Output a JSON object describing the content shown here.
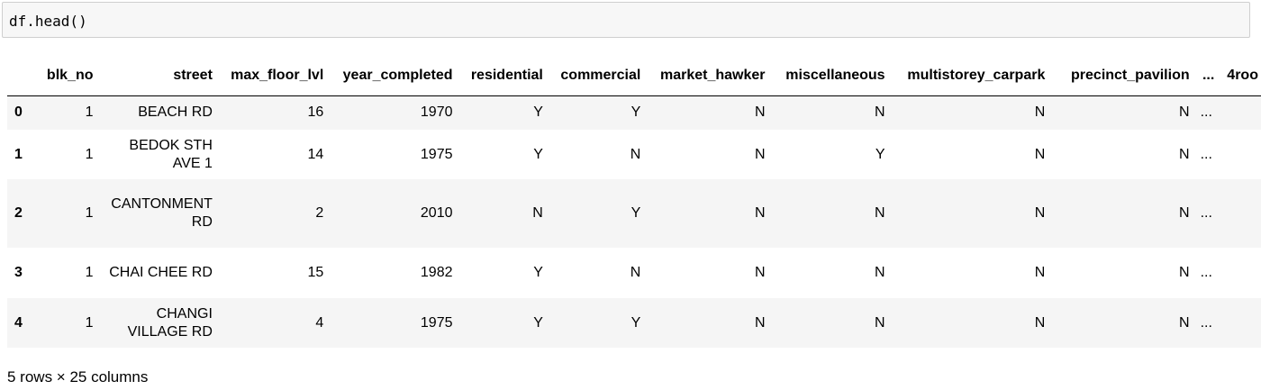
{
  "code_cell": {
    "source": "df.head()"
  },
  "dataframe": {
    "columns": [
      "",
      "blk_no",
      "street",
      "max_floor_lvl",
      "year_completed",
      "residential",
      "commercial",
      "market_hawker",
      "miscellaneous",
      "multistorey_carpark",
      "precinct_pavilion",
      "...",
      "4roo"
    ],
    "rows": [
      {
        "index": "0",
        "blk_no": "1",
        "street": "BEACH RD",
        "max_floor_lvl": "16",
        "year_completed": "1970",
        "residential": "Y",
        "commercial": "Y",
        "market_hawker": "N",
        "miscellaneous": "N",
        "multistorey_carpark": "N",
        "precinct_pavilion": "N",
        "ellipsis": "..."
      },
      {
        "index": "1",
        "blk_no": "1",
        "street": "BEDOK STH AVE 1",
        "max_floor_lvl": "14",
        "year_completed": "1975",
        "residential": "Y",
        "commercial": "N",
        "market_hawker": "N",
        "miscellaneous": "Y",
        "multistorey_carpark": "N",
        "precinct_pavilion": "N",
        "ellipsis": "..."
      },
      {
        "index": "2",
        "blk_no": "1",
        "street": "CANTONMENT RD",
        "max_floor_lvl": "2",
        "year_completed": "2010",
        "residential": "N",
        "commercial": "Y",
        "market_hawker": "N",
        "miscellaneous": "N",
        "multistorey_carpark": "N",
        "precinct_pavilion": "N",
        "ellipsis": "..."
      },
      {
        "index": "3",
        "blk_no": "1",
        "street": "CHAI CHEE RD",
        "max_floor_lvl": "15",
        "year_completed": "1982",
        "residential": "Y",
        "commercial": "N",
        "market_hawker": "N",
        "miscellaneous": "N",
        "multistorey_carpark": "N",
        "precinct_pavilion": "N",
        "ellipsis": "..."
      },
      {
        "index": "4",
        "blk_no": "1",
        "street": "CHANGI VILLAGE RD",
        "max_floor_lvl": "4",
        "year_completed": "1975",
        "residential": "Y",
        "commercial": "Y",
        "market_hawker": "N",
        "miscellaneous": "N",
        "multistorey_carpark": "N",
        "precinct_pavilion": "N",
        "ellipsis": "..."
      }
    ],
    "summary": "5 rows × 25 columns"
  }
}
